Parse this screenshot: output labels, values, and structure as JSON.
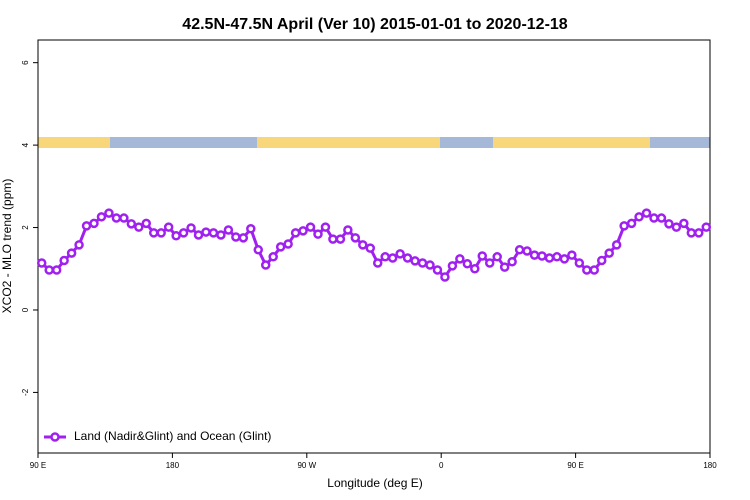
{
  "chart_data": {
    "type": "line",
    "title": "42.5N-47.5N April (Ver 10)   2015-01-01 to 2020-12-18",
    "x_label": "Longitude (deg E)",
    "y_label": "XCO2 - MLO trend (ppm)",
    "x": [
      92.5,
      97.5,
      102.5,
      107.5,
      112.5,
      117.5,
      122.5,
      127.5,
      132.5,
      137.5,
      142.5,
      147.5,
      152.5,
      157.5,
      162.5,
      167.5,
      172.5,
      177.5,
      182.5,
      187.5,
      192.5,
      197.5,
      202.5,
      207.5,
      212.5,
      217.5,
      222.5,
      227.5,
      232.5,
      237.5,
      242.5,
      247.5,
      252.5,
      257.5,
      262.5,
      267.5,
      272.5,
      277.5,
      282.5,
      287.5,
      292.5,
      297.5,
      302.5,
      307.5,
      312.5,
      317.5,
      322.5,
      327.5,
      332.5,
      337.5,
      342.5,
      347.5,
      352.5,
      357.5,
      362.5,
      367.5,
      372.5,
      377.5,
      382.5,
      387.5,
      392.5,
      397.5,
      402.5,
      407.5,
      412.5,
      417.5,
      422.5,
      427.5,
      432.5,
      437.5,
      442.5,
      447.5,
      452.5,
      457.5,
      462.5,
      467.5,
      472.5,
      477.5,
      482.5,
      487.5,
      492.5,
      497.5,
      502.5,
      507.5,
      512.5,
      517.5,
      522.5,
      527.5,
      532.5,
      537.5
    ],
    "series": [
      {
        "name": "Land (Nadir&Glint) and Ocean (Glint)",
        "color": "#a020f0",
        "values": [
          1.14,
          0.97,
          0.97,
          1.2,
          1.38,
          1.58,
          2.04,
          2.1,
          2.26,
          2.35,
          2.23,
          2.23,
          2.09,
          2.01,
          2.1,
          1.87,
          1.87,
          2.01,
          1.8,
          1.87,
          1.99,
          1.82,
          1.89,
          1.87,
          1.82,
          1.94,
          1.77,
          1.75,
          1.97,
          1.46,
          1.09,
          1.29,
          1.53,
          1.6,
          1.87,
          1.92,
          2.01,
          1.84,
          2.01,
          1.72,
          1.72,
          1.94,
          1.75,
          1.58,
          1.5,
          1.14,
          1.29,
          1.26,
          1.36,
          1.26,
          1.19,
          1.14,
          1.09,
          0.97,
          0.8,
          1.07,
          1.24,
          1.12,
          1.0,
          1.31,
          1.14,
          1.29,
          1.04,
          1.17,
          1.46,
          1.43,
          1.33,
          1.31,
          1.26,
          1.29,
          1.24,
          1.33,
          1.14,
          0.97,
          0.97,
          1.2,
          1.38,
          1.58,
          2.04,
          2.1,
          2.26,
          2.35,
          2.23,
          2.23,
          2.09,
          2.01,
          2.1,
          1.87,
          1.87,
          2.01
        ]
      }
    ],
    "xlim": [
      90,
      540
    ],
    "xticks": [
      {
        "value": 90,
        "label": "90 E"
      },
      180,
      {
        "value": 270,
        "label": "90 W"
      },
      {
        "value": 360,
        "label": "0"
      },
      {
        "value": 450,
        "label": "90 E"
      },
      {
        "value": 540,
        "label": "180"
      }
    ],
    "ylim": [
      -3.47,
      6.55
    ],
    "yticks": [
      -2,
      0,
      2,
      4,
      6
    ],
    "grid": false,
    "legend": "bottom-left"
  }
}
